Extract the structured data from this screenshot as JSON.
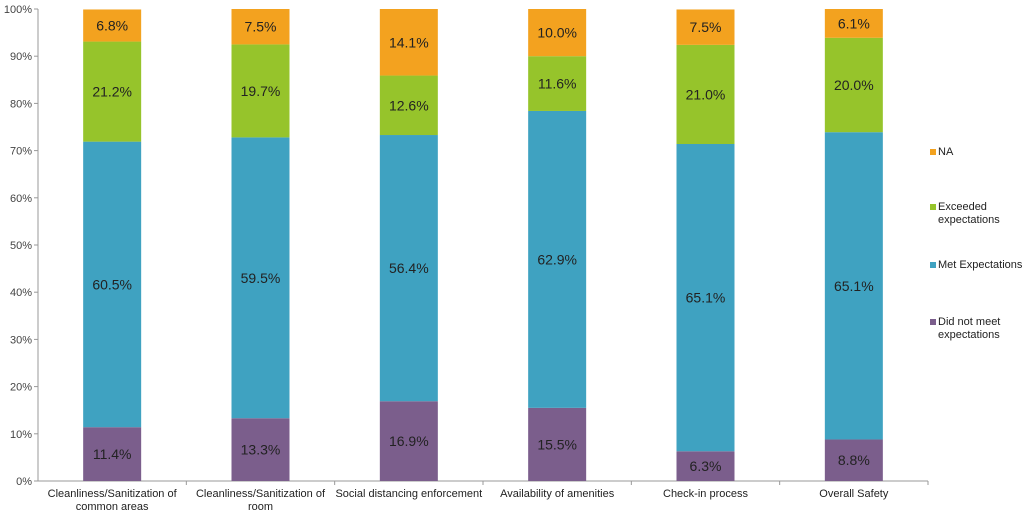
{
  "chart_data": {
    "type": "bar",
    "stacked": true,
    "title": "",
    "xlabel": "",
    "ylabel": "",
    "ylim": [
      0,
      100
    ],
    "y_ticks": [
      "0%",
      "10%",
      "20%",
      "30%",
      "40%",
      "50%",
      "60%",
      "70%",
      "80%",
      "90%",
      "100%"
    ],
    "grid": false,
    "legend_position": "right",
    "categories": [
      [
        "Cleanliness/Sanitization of",
        "common areas"
      ],
      [
        "Cleanliness/Sanitization of",
        "room"
      ],
      [
        "Social distancing enforcement"
      ],
      [
        "Availability of amenities"
      ],
      [
        "Check-in process"
      ],
      [
        "Overall Safety"
      ]
    ],
    "series": [
      {
        "name": "Did not meet expectations",
        "legend_lines": [
          "Did not meet",
          "expectations"
        ],
        "color": "#7b5e8c",
        "values": [
          11.4,
          13.3,
          16.9,
          15.5,
          6.3,
          8.8
        ],
        "labels": [
          "11.4%",
          "13.3%",
          "16.9%",
          "15.5%",
          "6.3%",
          "8.8%"
        ]
      },
      {
        "name": "Met Expectations",
        "legend_lines": [
          "Met Expectations"
        ],
        "color": "#3fa2c1",
        "values": [
          60.5,
          59.5,
          56.4,
          62.9,
          65.1,
          65.1
        ],
        "labels": [
          "60.5%",
          "59.5%",
          "56.4%",
          "62.9%",
          "65.1%",
          "65.1%"
        ]
      },
      {
        "name": "Exceeded expectations",
        "legend_lines": [
          "Exceeded",
          "expectations"
        ],
        "color": "#96c42b",
        "values": [
          21.2,
          19.7,
          12.6,
          11.6,
          21.0,
          20.0
        ],
        "labels": [
          "21.2%",
          "19.7%",
          "12.6%",
          "11.6%",
          "21.0%",
          "20.0%"
        ]
      },
      {
        "name": "NA",
        "legend_lines": [
          "NA"
        ],
        "color": "#f3a21f",
        "values": [
          6.8,
          7.5,
          14.1,
          10.0,
          7.5,
          6.1
        ],
        "labels": [
          "6.8%",
          "7.5%",
          "14.1%",
          "10.0%",
          "7.5%",
          "6.1%"
        ]
      }
    ],
    "legend_order": [
      "NA",
      "Exceeded expectations",
      "Met Expectations",
      "Did not meet expectations"
    ]
  }
}
